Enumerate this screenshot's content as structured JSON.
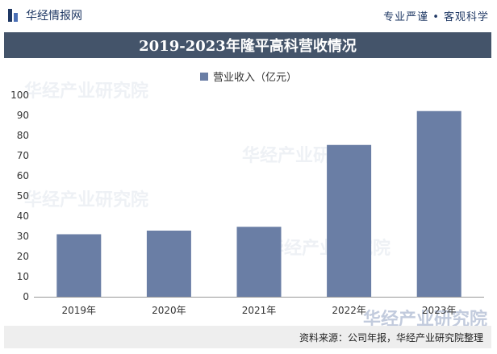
{
  "header": {
    "brand": "华经情报网",
    "slogan": "专业严谨 • 客观科学"
  },
  "title": "2019-2023年隆平高科营收情况",
  "legend": {
    "label": "营业收入（亿元）"
  },
  "chart_data": {
    "type": "bar",
    "categories": [
      "2019年",
      "2020年",
      "2021年",
      "2022年",
      "2023年"
    ],
    "series": [
      {
        "name": "营业收入（亿元）",
        "values": [
          31,
          32.8,
          34.7,
          75.3,
          92.1
        ]
      }
    ],
    "ylim": [
      0,
      100
    ],
    "yticks": [
      0,
      10,
      20,
      30,
      40,
      50,
      60,
      70,
      80,
      90,
      100
    ],
    "bar_color": "#6a7ea5",
    "legend_position": "top-center",
    "grid": false
  },
  "watermark": "华经产业研究院",
  "footer": {
    "source": "资料来源：公司年报，华经产业研究院整理"
  },
  "colors": {
    "banner": "#44546a",
    "brand": "#1f3864",
    "bar": "#6a7ea5",
    "footer_bg": "#eeeeee"
  }
}
